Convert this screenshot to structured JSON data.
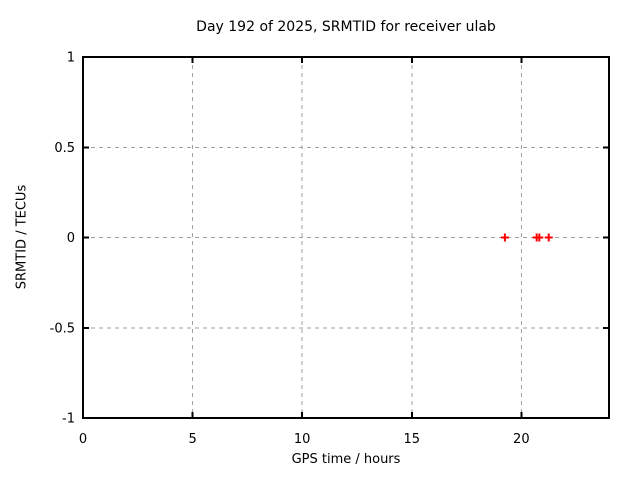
{
  "chart_data": {
    "type": "scatter",
    "title": "Day 192 of 2025, SRMTID for receiver ulab",
    "xlabel": "GPS time / hours",
    "ylabel": "SRMTID / TECUs",
    "xlim": [
      0,
      24
    ],
    "ylim": [
      -1,
      1
    ],
    "xticks": [
      0,
      5,
      10,
      15,
      20
    ],
    "xtick_labels": [
      "0",
      "5",
      "10",
      "15",
      "20"
    ],
    "yticks": [
      1,
      0.5,
      0,
      -0.5,
      -1
    ],
    "ytick_labels": [
      "1",
      "0.5",
      "0",
      "-0.5",
      "-1"
    ],
    "grid": true,
    "legend": "none",
    "marker": "plus",
    "colors": {
      "marker": "#ff0000",
      "grid": "#a0a0a0",
      "border": "#000000",
      "background": "#ffffff",
      "text": "#000000"
    },
    "points": [
      {
        "x": 19.25,
        "y": 0
      },
      {
        "x": 20.7,
        "y": 0
      },
      {
        "x": 20.82,
        "y": 0
      },
      {
        "x": 21.25,
        "y": 0
      }
    ]
  }
}
